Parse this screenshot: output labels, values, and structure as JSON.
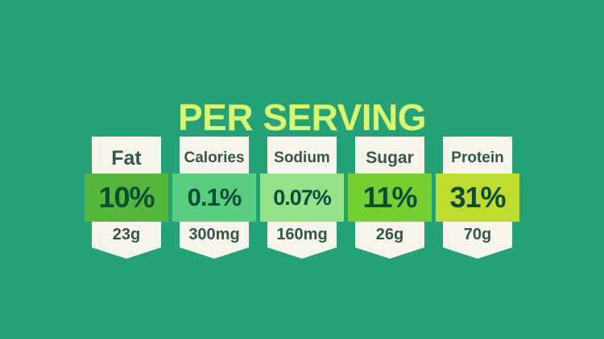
{
  "title": "PER SERVING",
  "colors": {
    "background": "#23a277",
    "title": "#dbf56e",
    "badge_background": "#f7f5eb",
    "label_text": "#35564b",
    "value_text": "#0e4a38"
  },
  "nutrients": [
    {
      "label": "Fat",
      "percent": "10%",
      "amount": "23g",
      "band_color": "#55b83c"
    },
    {
      "label": "Calories",
      "percent": "0.1%",
      "amount": "300mg",
      "band_color": "#5ace7f"
    },
    {
      "label": "Sodium",
      "percent": "0.07%",
      "amount": "160mg",
      "band_color": "#95e187"
    },
    {
      "label": "Sugar",
      "percent": "11%",
      "amount": "26g",
      "band_color": "#74d02e"
    },
    {
      "label": "Protein",
      "percent": "31%",
      "amount": "70g",
      "band_color": "#bedc2d"
    }
  ],
  "chart_data": {
    "type": "table",
    "title": "PER SERVING",
    "categories": [
      "Fat",
      "Calories",
      "Sodium",
      "Sugar",
      "Protein"
    ],
    "series": [
      {
        "name": "percent_daily_value",
        "unit": "%",
        "values": [
          10,
          0.1,
          0.07,
          11,
          31
        ]
      },
      {
        "name": "amount_per_serving",
        "values": [
          "23g",
          "300mg",
          "160mg",
          "26g",
          "70g"
        ]
      }
    ],
    "legend_position": "none",
    "grid": false
  }
}
